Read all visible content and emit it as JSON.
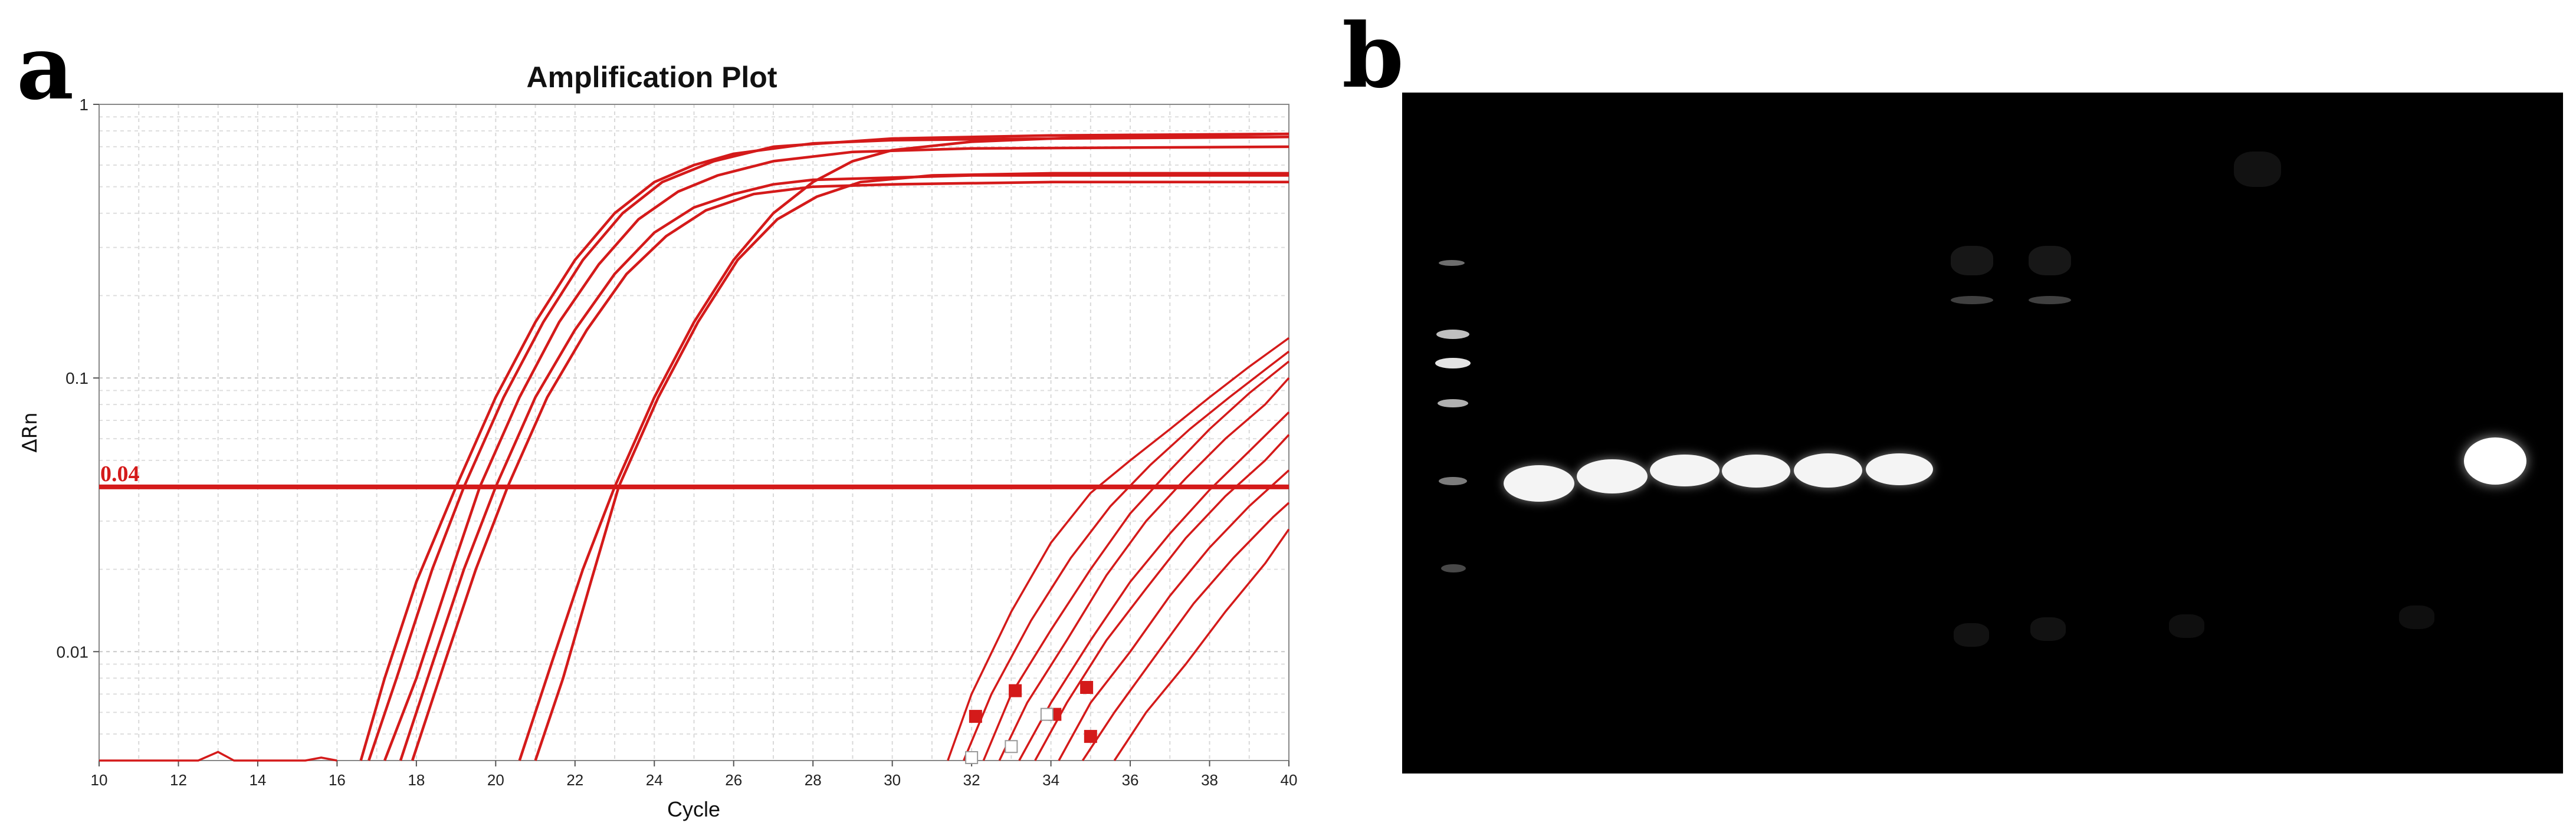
{
  "panels": {
    "a_label": "a",
    "b_label": "b"
  },
  "chart_data": {
    "type": "line",
    "title": "Amplification Plot",
    "xlabel": "Cycle",
    "ylabel": "ΔRn",
    "x_range": [
      10,
      40
    ],
    "y_range": [
      0.004,
      1
    ],
    "y_scale": "log",
    "x_ticks": [
      10,
      12,
      14,
      16,
      18,
      20,
      22,
      24,
      26,
      28,
      30,
      32,
      34,
      36,
      38,
      40
    ],
    "y_ticks": [
      {
        "value": 0.01,
        "label": "0.01"
      },
      {
        "value": 0.1,
        "label": "0.1"
      },
      {
        "value": 1,
        "label": "1"
      }
    ],
    "grid": true,
    "line_color": "#d41a1a",
    "threshold": {
      "value": 0.04,
      "label": "0.04"
    },
    "series": [
      {
        "values": [
          [
            16.6,
            0.004
          ],
          [
            17.2,
            0.008
          ],
          [
            18,
            0.018
          ],
          [
            19,
            0.04
          ],
          [
            20,
            0.085
          ],
          [
            21,
            0.16
          ],
          [
            22,
            0.27
          ],
          [
            23,
            0.4
          ],
          [
            24,
            0.52
          ],
          [
            25,
            0.6
          ],
          [
            26,
            0.66
          ],
          [
            28,
            0.72
          ],
          [
            30,
            0.74
          ],
          [
            34,
            0.75
          ],
          [
            40,
            0.76
          ]
        ]
      },
      {
        "values": [
          [
            16.8,
            0.004
          ],
          [
            17.5,
            0.008
          ],
          [
            18.4,
            0.02
          ],
          [
            19.2,
            0.04
          ],
          [
            20.2,
            0.085
          ],
          [
            21.2,
            0.16
          ],
          [
            22.2,
            0.27
          ],
          [
            23.2,
            0.4
          ],
          [
            24.2,
            0.52
          ],
          [
            25.5,
            0.62
          ],
          [
            27,
            0.7
          ],
          [
            30,
            0.75
          ],
          [
            34,
            0.77
          ],
          [
            40,
            0.78
          ]
        ]
      },
      {
        "values": [
          [
            17.2,
            0.004
          ],
          [
            18,
            0.008
          ],
          [
            18.9,
            0.02
          ],
          [
            19.6,
            0.04
          ],
          [
            20.6,
            0.085
          ],
          [
            21.6,
            0.16
          ],
          [
            22.6,
            0.26
          ],
          [
            23.6,
            0.38
          ],
          [
            24.6,
            0.48
          ],
          [
            25.6,
            0.55
          ],
          [
            27,
            0.62
          ],
          [
            29,
            0.67
          ],
          [
            32,
            0.69
          ],
          [
            40,
            0.7
          ]
        ]
      },
      {
        "values": [
          [
            17.6,
            0.004
          ],
          [
            18.4,
            0.009
          ],
          [
            19.2,
            0.02
          ],
          [
            20,
            0.04
          ],
          [
            21,
            0.085
          ],
          [
            22,
            0.15
          ],
          [
            23,
            0.24
          ],
          [
            24,
            0.34
          ],
          [
            25,
            0.42
          ],
          [
            26,
            0.47
          ],
          [
            27,
            0.51
          ],
          [
            28,
            0.53
          ],
          [
            32,
            0.55
          ],
          [
            40,
            0.55
          ]
        ]
      },
      {
        "values": [
          [
            17.9,
            0.004
          ],
          [
            18.7,
            0.009
          ],
          [
            19.5,
            0.02
          ],
          [
            20.3,
            0.04
          ],
          [
            21.3,
            0.085
          ],
          [
            22.3,
            0.15
          ],
          [
            23.3,
            0.24
          ],
          [
            24.3,
            0.33
          ],
          [
            25.3,
            0.41
          ],
          [
            26.5,
            0.47
          ],
          [
            28,
            0.5
          ],
          [
            30,
            0.51
          ],
          [
            34,
            0.52
          ],
          [
            40,
            0.52
          ]
        ]
      },
      {
        "values": [
          [
            20.6,
            0.004
          ],
          [
            21.4,
            0.009
          ],
          [
            22.2,
            0.02
          ],
          [
            23,
            0.04
          ],
          [
            24,
            0.085
          ],
          [
            25,
            0.16
          ],
          [
            26,
            0.27
          ],
          [
            27,
            0.4
          ],
          [
            28,
            0.52
          ],
          [
            29,
            0.62
          ],
          [
            30,
            0.68
          ],
          [
            32,
            0.73
          ],
          [
            35,
            0.76
          ],
          [
            40,
            0.78
          ]
        ]
      },
      {
        "values": [
          [
            21,
            0.004
          ],
          [
            21.7,
            0.008
          ],
          [
            22.4,
            0.018
          ],
          [
            23.1,
            0.04
          ],
          [
            24.1,
            0.085
          ],
          [
            25.1,
            0.16
          ],
          [
            26.1,
            0.27
          ],
          [
            27.1,
            0.38
          ],
          [
            28.1,
            0.46
          ],
          [
            29.2,
            0.52
          ],
          [
            31,
            0.55
          ],
          [
            34,
            0.56
          ],
          [
            40,
            0.56
          ]
        ]
      },
      {
        "values": [
          [
            31.4,
            0.004
          ],
          [
            32,
            0.007
          ],
          [
            33,
            0.014
          ],
          [
            34,
            0.025
          ],
          [
            35,
            0.038
          ],
          [
            36,
            0.05
          ],
          [
            37,
            0.065
          ],
          [
            38,
            0.085
          ],
          [
            39,
            0.11
          ],
          [
            40,
            0.14
          ]
        ]
      },
      {
        "values": [
          [
            31.8,
            0.004
          ],
          [
            32.5,
            0.007
          ],
          [
            33.5,
            0.013
          ],
          [
            34.5,
            0.022
          ],
          [
            35.5,
            0.034
          ],
          [
            36.5,
            0.048
          ],
          [
            37.5,
            0.065
          ],
          [
            38.5,
            0.085
          ],
          [
            39.5,
            0.11
          ],
          [
            40,
            0.125
          ]
        ]
      },
      {
        "values": [
          [
            32.3,
            0.004
          ],
          [
            33,
            0.007
          ],
          [
            34,
            0.012
          ],
          [
            35,
            0.02
          ],
          [
            36,
            0.032
          ],
          [
            37,
            0.046
          ],
          [
            38,
            0.065
          ],
          [
            39,
            0.088
          ],
          [
            40,
            0.115
          ]
        ]
      },
      {
        "values": [
          [
            32.7,
            0.004
          ],
          [
            33.4,
            0.0065
          ],
          [
            34.4,
            0.011
          ],
          [
            35.4,
            0.019
          ],
          [
            36.4,
            0.03
          ],
          [
            37.4,
            0.043
          ],
          [
            38.4,
            0.06
          ],
          [
            39.4,
            0.08
          ],
          [
            40,
            0.1
          ]
        ]
      },
      {
        "values": [
          [
            33.2,
            0.004
          ],
          [
            34,
            0.0065
          ],
          [
            35,
            0.011
          ],
          [
            36,
            0.018
          ],
          [
            37,
            0.027
          ],
          [
            38,
            0.039
          ],
          [
            39,
            0.054
          ],
          [
            40,
            0.075
          ]
        ]
      },
      {
        "values": [
          [
            33.6,
            0.004
          ],
          [
            34.4,
            0.0065
          ],
          [
            35.4,
            0.011
          ],
          [
            36.4,
            0.017
          ],
          [
            37.4,
            0.026
          ],
          [
            38.4,
            0.037
          ],
          [
            39.4,
            0.05
          ],
          [
            40,
            0.062
          ]
        ]
      },
      {
        "values": [
          [
            34.2,
            0.004
          ],
          [
            35,
            0.0065
          ],
          [
            36,
            0.01
          ],
          [
            37,
            0.016
          ],
          [
            38,
            0.024
          ],
          [
            39,
            0.034
          ],
          [
            40,
            0.046
          ]
        ]
      },
      {
        "values": [
          [
            34.8,
            0.004
          ],
          [
            35.6,
            0.006
          ],
          [
            36.6,
            0.0095
          ],
          [
            37.6,
            0.015
          ],
          [
            38.6,
            0.022
          ],
          [
            39.6,
            0.031
          ],
          [
            40,
            0.035
          ]
        ]
      },
      {
        "values": [
          [
            35.6,
            0.004
          ],
          [
            36.4,
            0.006
          ],
          [
            37.4,
            0.009
          ],
          [
            38.4,
            0.014
          ],
          [
            39.4,
            0.021
          ],
          [
            40,
            0.028
          ]
        ]
      },
      {
        "values": [
          [
            10,
            0.004
          ],
          [
            12.5,
            0.004
          ],
          [
            13,
            0.0043
          ],
          [
            13.4,
            0.004
          ],
          [
            15.2,
            0.004
          ],
          [
            15.6,
            0.0041
          ],
          [
            16,
            0.004
          ]
        ]
      }
    ],
    "markers": [
      {
        "x": 32.1,
        "y": 0.0058,
        "filled": true
      },
      {
        "x": 32.0,
        "y": 0.0041,
        "filled": false
      },
      {
        "x": 33.1,
        "y": 0.0072,
        "filled": true
      },
      {
        "x": 33.0,
        "y": 0.0045,
        "filled": false
      },
      {
        "x": 34.1,
        "y": 0.0059,
        "filled": true
      },
      {
        "x": 34.9,
        "y": 0.0074,
        "filled": true
      },
      {
        "x": 35.0,
        "y": 0.0049,
        "filled": true
      },
      {
        "x": 33.9,
        "y": 0.0059,
        "filled": false
      }
    ]
  }
}
